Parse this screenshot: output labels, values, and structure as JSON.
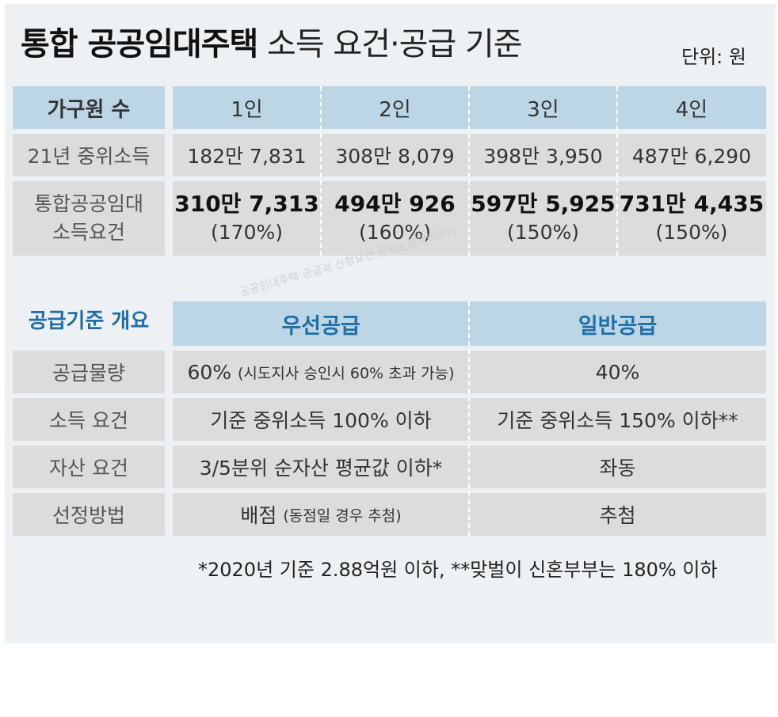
{
  "title": {
    "bold": "통합 공공임대주택",
    "rest": "소득 요건·공급 기준"
  },
  "unit": "단위: 원",
  "table1": {
    "header": [
      "가구원 수",
      "1인",
      "2인",
      "3인",
      "4인"
    ],
    "median_label": "21년 중위소득",
    "median": [
      "182만 7,831",
      "308만 8,079",
      "398만 3,950",
      "487만 6,290"
    ],
    "req_label_line1": "통합공공임대",
    "req_label_line2": "소득요건",
    "req": [
      {
        "amount": "310만 7,313",
        "pct": "(170%)"
      },
      {
        "amount": "494만 926",
        "pct": "(160%)"
      },
      {
        "amount": "597만 5,925",
        "pct": "(150%)"
      },
      {
        "amount": "731만 4,435",
        "pct": "(150%)"
      }
    ]
  },
  "table2": {
    "section_title": "공급기준 개요",
    "col_priority": "우선공급",
    "col_general": "일반공급",
    "rows": [
      {
        "label": "공급물량",
        "priority_main": "60%",
        "priority_note": "(시도지사 승인시 60% 초과 가능)",
        "general": "40%"
      },
      {
        "label": "소득 요건",
        "priority_main": "기준 중위소득 100% 이하",
        "priority_note": "",
        "general": "기준 중위소득 150% 이하**"
      },
      {
        "label": "자산 요건",
        "priority_main": "3/5분위 순자산 평균값 이하*",
        "priority_note": "",
        "general": "좌동"
      },
      {
        "label": "선정방법",
        "priority_main": "배점",
        "priority_note": "(동점일 경우 추첨)",
        "general": "추첨"
      }
    ]
  },
  "footnote": "*2020년 기준 2.88억원 이하, **맞벌이 신혼부부는 180% 이하",
  "watermark": "공공임대주택 공급과 신청요건 돈되는경제이야기"
}
